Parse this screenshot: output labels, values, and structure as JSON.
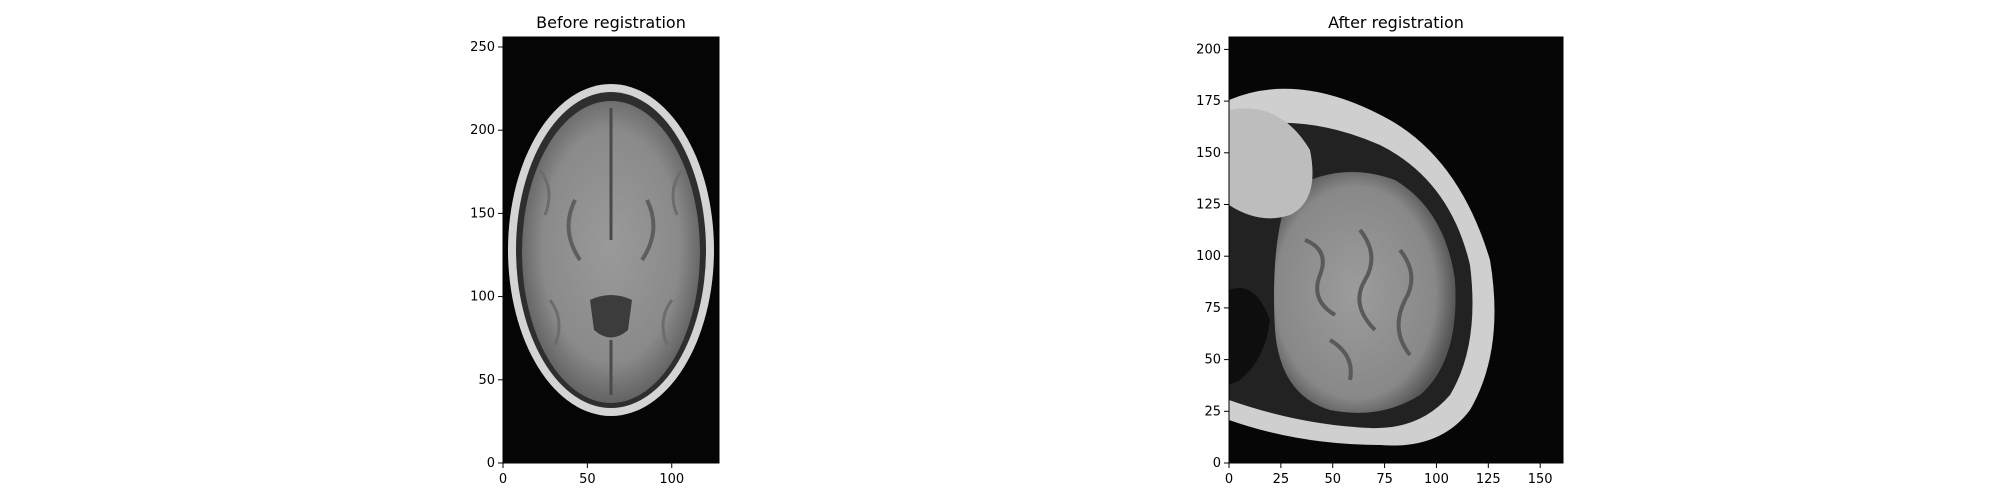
{
  "figure": {
    "panels": [
      {
        "title": "Before registration",
        "x_ticks": [
          "0",
          "50",
          "100"
        ],
        "y_ticks": [
          "0",
          "50",
          "100",
          "150",
          "200",
          "250"
        ],
        "xlim": [
          0,
          128
        ],
        "ylim": [
          0,
          256
        ],
        "content": "axial brain MRI slice"
      },
      {
        "title": "After registration",
        "x_ticks": [
          "0",
          "25",
          "50",
          "75",
          "100",
          "125",
          "150"
        ],
        "y_ticks": [
          "0",
          "25",
          "50",
          "75",
          "100",
          "125",
          "150",
          "175",
          "200"
        ],
        "xlim": [
          0,
          161
        ],
        "ylim": [
          0,
          206
        ],
        "content": "resampled brain MRI slice"
      }
    ]
  }
}
